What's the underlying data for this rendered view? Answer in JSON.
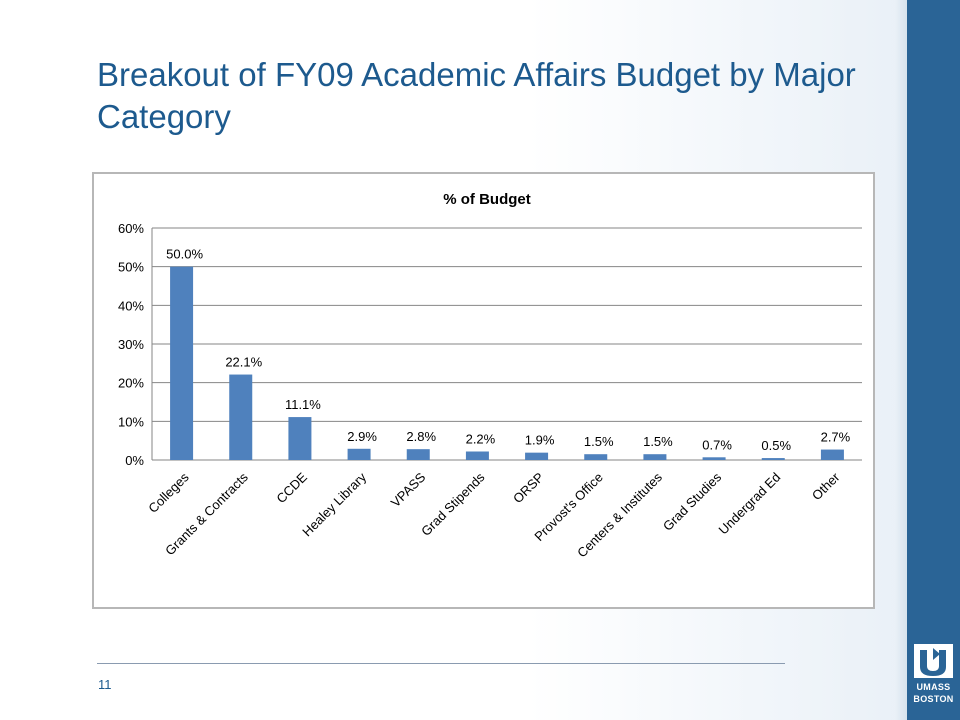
{
  "slide": {
    "title": "Breakout of FY09 Academic Affairs Budget by Major Category",
    "page_number": "11"
  },
  "logo": {
    "line1": "UMASS",
    "line2": "BOSTON",
    "colors": {
      "band": "#2a6496",
      "text": "#ffffff"
    }
  },
  "colors": {
    "title": "#1d5a8e",
    "bar": "#4f81bd",
    "grid": "#868686"
  },
  "chart_data": {
    "type": "bar",
    "title": "% of Budget",
    "categories": [
      "Colleges",
      "Grants & Contracts",
      "CCDE",
      "Healey Library",
      "VPASS",
      "Grad Stipends",
      "ORSP",
      "Provost's Office",
      "Centers & Institutes",
      "Grad Studies",
      "Undergrad Ed",
      "Other"
    ],
    "values": [
      50.0,
      22.1,
      11.1,
      2.9,
      2.8,
      2.2,
      1.9,
      1.5,
      1.5,
      0.7,
      0.5,
      2.7
    ],
    "data_labels": [
      "50.0%",
      "22.1%",
      "11.1%",
      "2.9%",
      "2.8%",
      "2.2%",
      "1.9%",
      "1.5%",
      "1.5%",
      "0.7%",
      "0.5%",
      "2.7%"
    ],
    "y_ticks": [
      0,
      10,
      20,
      30,
      40,
      50,
      60
    ],
    "y_tick_labels": [
      "0%",
      "10%",
      "20%",
      "30%",
      "40%",
      "50%",
      "60%"
    ],
    "ylim": [
      0,
      60
    ],
    "xlabel": "",
    "ylabel": "",
    "grid": true,
    "legend": "none"
  }
}
